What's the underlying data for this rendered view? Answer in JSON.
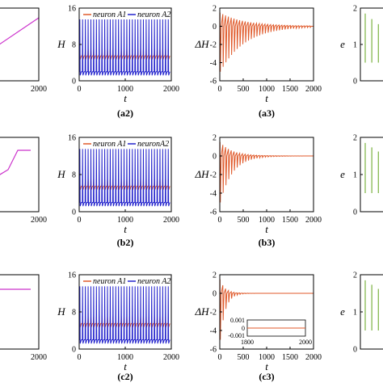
{
  "chart_data": [
    {
      "id": "r1c1",
      "type": "line",
      "x_ticks": [
        "2000"
      ],
      "series": [
        {
          "color": "#cc33cc",
          "kind": "ramp"
        }
      ]
    },
    {
      "id": "r1c2",
      "type": "line",
      "ylabel": "H",
      "xlabel": "t",
      "caption": "(a2)",
      "xlim": [
        0,
        2000
      ],
      "ylim": [
        0,
        16
      ],
      "x_ticks": [
        0,
        1000,
        2000
      ],
      "y_ticks": [
        0,
        8,
        16
      ],
      "legend": [
        "neuron A1",
        "neuron A2"
      ],
      "series": [
        {
          "name": "neuron A1",
          "color": "#e05a2b",
          "kind": "spike",
          "low": 5.5,
          "high": 7.0,
          "period": 60
        },
        {
          "name": "neuron A2",
          "color": "#2222cc",
          "kind": "spike",
          "low": 2.0,
          "high": 13.5,
          "period": 60
        }
      ]
    },
    {
      "id": "r1c3",
      "type": "line",
      "ylabel": "ΔH",
      "xlabel": "t",
      "caption": "(a3)",
      "xlim": [
        0,
        2000
      ],
      "ylim": [
        -6,
        2
      ],
      "x_ticks": [
        0,
        500,
        1000,
        1500,
        2000
      ],
      "y_ticks": [
        -6,
        -4,
        -2,
        0,
        2
      ],
      "series": [
        {
          "color": "#e05a2b",
          "kind": "decay",
          "amp": 5.0,
          "tau": 520,
          "period": 60
        }
      ]
    },
    {
      "id": "r1c4",
      "type": "line",
      "ylabel": "e",
      "y_ticks": [
        0,
        1,
        2
      ],
      "series": [
        {
          "color": "#7cb342",
          "kind": "comb",
          "amp": 1.85,
          "decay": 700
        }
      ]
    },
    {
      "id": "r2c1",
      "type": "line",
      "x_ticks": [
        "2000"
      ],
      "series": [
        {
          "color": "#cc33cc",
          "kind": "sat"
        }
      ]
    },
    {
      "id": "r2c2",
      "type": "line",
      "ylabel": "H",
      "xlabel": "t",
      "caption": "(b2)",
      "xlim": [
        0,
        2000
      ],
      "ylim": [
        0,
        16
      ],
      "x_ticks": [
        0,
        1000,
        2000
      ],
      "y_ticks": [
        0,
        8,
        16
      ],
      "legend": [
        "neuron A1",
        "neuronA2"
      ],
      "series": [
        {
          "name": "neuron A1",
          "color": "#e05a2b",
          "kind": "spike",
          "low": 5.5,
          "high": 7.0,
          "period": 60
        },
        {
          "name": "neuronA2",
          "color": "#2222cc",
          "kind": "spike",
          "low": 2.0,
          "high": 13.5,
          "period": 60
        }
      ]
    },
    {
      "id": "r2c3",
      "type": "line",
      "ylabel": "ΔH",
      "xlabel": "t",
      "caption": "(b3)",
      "xlim": [
        0,
        2000
      ],
      "ylim": [
        -6,
        2
      ],
      "x_ticks": [
        0,
        500,
        1000,
        1500,
        2000
      ],
      "y_ticks": [
        -6,
        -4,
        -2,
        0,
        2
      ],
      "series": [
        {
          "color": "#e05a2b",
          "kind": "decay",
          "amp": 5.0,
          "tau": 260,
          "period": 60
        }
      ]
    },
    {
      "id": "r2c4",
      "type": "line",
      "ylabel": "e",
      "y_ticks": [
        0,
        1,
        2
      ],
      "series": [
        {
          "color": "#7cb342",
          "kind": "comb",
          "amp": 1.85,
          "decay": 900
        }
      ]
    },
    {
      "id": "r3c1",
      "type": "line",
      "x_ticks": [
        "2000"
      ],
      "series": [
        {
          "color": "#cc33cc",
          "kind": "flat"
        }
      ]
    },
    {
      "id": "r3c2",
      "type": "line",
      "ylabel": "H",
      "xlabel": "t",
      "caption": "(c2)",
      "xlim": [
        0,
        2000
      ],
      "ylim": [
        0,
        16
      ],
      "x_ticks": [
        0,
        1000,
        2000
      ],
      "y_ticks": [
        0,
        8,
        16
      ],
      "legend": [
        "neuron A1",
        "neuron A2"
      ],
      "series": [
        {
          "name": "neuron A1",
          "color": "#e05a2b",
          "kind": "spike",
          "low": 5.5,
          "high": 7.0,
          "period": 60
        },
        {
          "name": "neuron A2",
          "color": "#2222cc",
          "kind": "spike",
          "low": 2.0,
          "high": 13.5,
          "period": 60
        }
      ]
    },
    {
      "id": "r3c3",
      "type": "line",
      "ylabel": "ΔH",
      "xlabel": "t",
      "caption": "(c3)",
      "xlim": [
        0,
        2000
      ],
      "ylim": [
        -6,
        2
      ],
      "x_ticks": [
        0,
        500,
        1000,
        1500,
        2000
      ],
      "y_ticks": [
        -6,
        -4,
        -2,
        0,
        2
      ],
      "series": [
        {
          "color": "#e05a2b",
          "kind": "decay",
          "amp": 5.0,
          "tau": 110,
          "period": 60
        }
      ],
      "inset": {
        "xlim": [
          1800,
          2000
        ],
        "x_ticks": [
          1800,
          2000
        ],
        "y_ticks": [
          "0.001",
          "0",
          "-0.001"
        ]
      }
    },
    {
      "id": "r3c4",
      "type": "line",
      "ylabel": "e",
      "y_ticks": [
        0,
        1,
        2
      ],
      "series": [
        {
          "color": "#7cb342",
          "kind": "comb",
          "amp": 1.85,
          "decay": 900
        }
      ]
    }
  ]
}
